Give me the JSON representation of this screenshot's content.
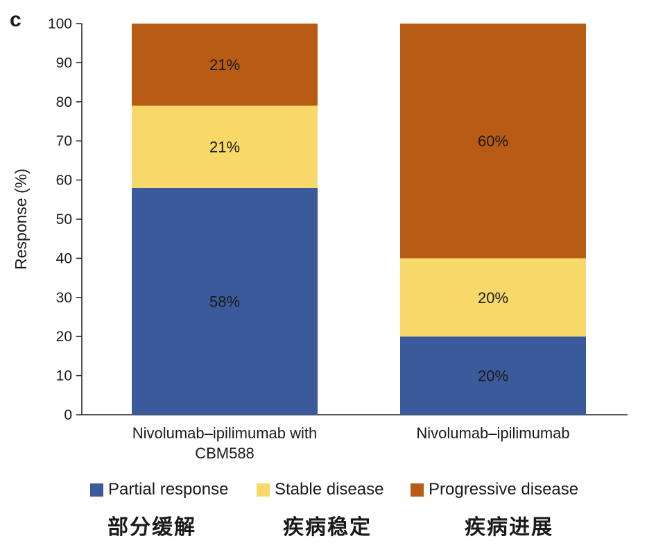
{
  "panel_label": "c",
  "chart_data": {
    "type": "bar",
    "stacked": true,
    "categories": [
      "Nivolumab–ipilimumab with CBM588",
      "Nivolumab–ipilimumab"
    ],
    "category_lines": [
      [
        "Nivolumab–ipilimumab with",
        "CBM588"
      ],
      [
        "Nivolumab–ipilimumab"
      ]
    ],
    "series": [
      {
        "name": "Partial response",
        "values": [
          58,
          20
        ],
        "labels": [
          "58%",
          "20%"
        ],
        "color": "#3A5A9C"
      },
      {
        "name": "Stable disease",
        "values": [
          21,
          20
        ],
        "labels": [
          "21%",
          "20%"
        ],
        "color": "#F7D868"
      },
      {
        "name": "Progressive disease",
        "values": [
          21,
          60
        ],
        "labels": [
          "21%",
          "60%"
        ],
        "color": "#B85C15"
      }
    ],
    "ylabel": "Response (%)",
    "ylim": [
      0,
      100
    ],
    "yticks": [
      0,
      10,
      20,
      30,
      40,
      50,
      60,
      70,
      80,
      90,
      100
    ],
    "grid": false,
    "legend_position": "bottom"
  },
  "legend": {
    "items": [
      {
        "label": "Partial response",
        "color": "#3A5A9C"
      },
      {
        "label": "Stable disease",
        "color": "#F7D868"
      },
      {
        "label": "Progressive disease",
        "color": "#B85C15"
      }
    ]
  },
  "annotations": {
    "cn_labels": [
      "部分缓解",
      "疾病稳定",
      "疾病进展"
    ]
  }
}
